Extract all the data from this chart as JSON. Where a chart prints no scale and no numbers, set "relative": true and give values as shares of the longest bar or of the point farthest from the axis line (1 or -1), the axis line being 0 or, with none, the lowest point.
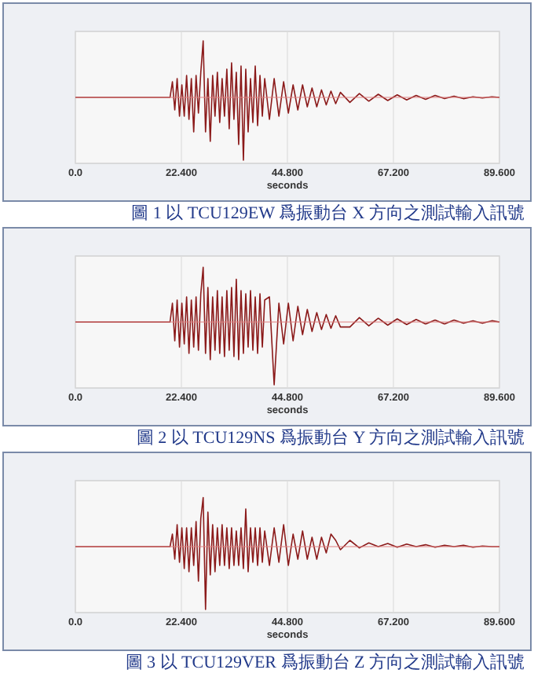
{
  "chart_data": [
    {
      "type": "line",
      "xlabel": "seconds",
      "relative": true,
      "grid": "x",
      "color": "#8b1a1a",
      "line_style": "solid",
      "marker": "none",
      "xlim": [
        0,
        89.6
      ],
      "xticks": [
        {
          "value": 0,
          "label": "0.0"
        },
        {
          "value": 22.4,
          "label": "22.400"
        },
        {
          "value": 44.8,
          "label": "44.800"
        },
        {
          "value": 67.2,
          "label": "67.200"
        },
        {
          "value": 89.6,
          "label": "89.600"
        }
      ],
      "ref_lines": [
        {
          "axis": "y",
          "value": 0,
          "color": "#e08080"
        }
      ],
      "annotations": [
        "圖 1 以 TCU129EW 爲振動台 X 方向之測試輸入訊號"
      ],
      "x": [
        0,
        20,
        20.5,
        21,
        21.5,
        22,
        22.5,
        23,
        23.5,
        24,
        24.5,
        25,
        25.5,
        26,
        26.5,
        27,
        27.5,
        28,
        28.5,
        29,
        29.5,
        30,
        30.5,
        31,
        31.5,
        32,
        32.5,
        33,
        33.5,
        34,
        34.5,
        35,
        35.5,
        36,
        36.5,
        37,
        37.5,
        38,
        38.5,
        39,
        39.5,
        40,
        41,
        42,
        43,
        44,
        45,
        46,
        47,
        48,
        49,
        50,
        51,
        52,
        53,
        54,
        55,
        56,
        58,
        60,
        62,
        64,
        66,
        68,
        70,
        72,
        74,
        76,
        78,
        80,
        82,
        84,
        86,
        88,
        89.6
      ],
      "values": [
        0,
        0,
        0.25,
        -0.2,
        0.3,
        -0.3,
        0.2,
        -0.3,
        0.35,
        -0.35,
        0.3,
        -0.55,
        0.35,
        -0.25,
        0.4,
        0.9,
        -0.55,
        0.3,
        -0.7,
        0.35,
        -0.3,
        0.4,
        -0.4,
        0.3,
        -0.3,
        0.45,
        -0.5,
        0.55,
        -0.35,
        0.4,
        -0.75,
        0.5,
        -1,
        0.45,
        -0.55,
        0.3,
        -0.4,
        0.5,
        -0.45,
        0.35,
        -0.3,
        0.3,
        -0.35,
        0.3,
        -0.3,
        0.25,
        -0.25,
        0.2,
        -0.2,
        0.2,
        -0.15,
        0.15,
        -0.15,
        0.12,
        -0.12,
        0.1,
        -0.1,
        0.08,
        -0.08,
        0.06,
        -0.06,
        0.05,
        -0.05,
        0.04,
        -0.04,
        0.03,
        -0.03,
        0.03,
        -0.02,
        0.02,
        -0.02,
        0.01,
        -0.01,
        0.01,
        0
      ]
    },
    {
      "type": "line",
      "xlabel": "seconds",
      "relative": true,
      "grid": "x",
      "color": "#8b1a1a",
      "line_style": "solid",
      "marker": "none",
      "xlim": [
        0,
        89.6
      ],
      "xticks": [
        {
          "value": 0,
          "label": "0.0"
        },
        {
          "value": 22.4,
          "label": "22.400"
        },
        {
          "value": 44.8,
          "label": "44.800"
        },
        {
          "value": 67.2,
          "label": "67.200"
        },
        {
          "value": 89.6,
          "label": "89.600"
        }
      ],
      "ref_lines": [
        {
          "axis": "y",
          "value": 0,
          "color": "#e08080"
        }
      ],
      "annotations": [
        "圖 2 以 TCU129NS 爲振動台 Y 方向之測試輸入訊號"
      ],
      "x": [
        0,
        20,
        20.5,
        21,
        21.5,
        22,
        22.5,
        23,
        23.5,
        24,
        24.5,
        25,
        25.5,
        26,
        26.5,
        27,
        27.5,
        28,
        28.5,
        29,
        29.5,
        30,
        30.5,
        31,
        31.5,
        32,
        32.5,
        33,
        33.5,
        34,
        34.5,
        35,
        35.5,
        36,
        36.5,
        37,
        37.5,
        38,
        38.5,
        39,
        39.5,
        40,
        41,
        42,
        43,
        44,
        45,
        46,
        47,
        48,
        49,
        50,
        51,
        52,
        53,
        54,
        55,
        56,
        58,
        60,
        62,
        64,
        66,
        68,
        70,
        72,
        74,
        76,
        78,
        80,
        82,
        84,
        86,
        88,
        89.6
      ],
      "values": [
        0,
        0,
        0.3,
        -0.3,
        0.35,
        -0.4,
        0.3,
        -0.35,
        0.4,
        -0.5,
        0.35,
        -0.4,
        0.4,
        -0.45,
        0.45,
        0.87,
        -0.5,
        0.55,
        -0.6,
        0.4,
        -0.45,
        0.5,
        -0.5,
        0.4,
        -0.55,
        0.5,
        -0.45,
        0.55,
        -0.55,
        0.68,
        -0.6,
        0.5,
        -0.5,
        0.45,
        -0.4,
        0.5,
        -0.45,
        0.4,
        -0.5,
        0.45,
        -0.4,
        0.35,
        0.4,
        -1,
        0.3,
        -0.35,
        0.3,
        -0.3,
        0.25,
        -0.2,
        0.2,
        -0.15,
        0.15,
        -0.12,
        0.12,
        -0.1,
        0.1,
        -0.08,
        -0.08,
        0.07,
        -0.06,
        0.06,
        -0.05,
        0.05,
        -0.04,
        0.04,
        -0.03,
        0.03,
        -0.03,
        0.03,
        -0.02,
        0.02,
        -0.02,
        0.02,
        0
      ]
    },
    {
      "type": "line",
      "xlabel": "seconds",
      "relative": true,
      "grid": "x",
      "color": "#8b1a1a",
      "line_style": "solid",
      "marker": "none",
      "xlim": [
        0,
        89.6
      ],
      "xticks": [
        {
          "value": 0,
          "label": "0.0"
        },
        {
          "value": 22.4,
          "label": "22.400"
        },
        {
          "value": 44.8,
          "label": "44.800"
        },
        {
          "value": 67.2,
          "label": "67.200"
        },
        {
          "value": 89.6,
          "label": "89.600"
        }
      ],
      "ref_lines": [
        {
          "axis": "y",
          "value": 0,
          "color": "#e08080"
        }
      ],
      "annotations": [
        "圖 3 以 TCU129VER 爲振動台 Z 方向之測試輸入訊號"
      ],
      "x": [
        0,
        20,
        20.5,
        21,
        21.5,
        22,
        22.5,
        23,
        23.5,
        24,
        24.5,
        25,
        25.5,
        26,
        26.5,
        27,
        27.5,
        28,
        28.5,
        29,
        29.5,
        30,
        30.5,
        31,
        31.5,
        32,
        32.5,
        33,
        33.5,
        34,
        34.5,
        35,
        35.5,
        36,
        36.5,
        37,
        37.5,
        38,
        38.5,
        39,
        39.5,
        40,
        41,
        42,
        43,
        44,
        45,
        46,
        47,
        48,
        49,
        50,
        51,
        52,
        53,
        54,
        55,
        56,
        58,
        60,
        62,
        64,
        66,
        68,
        70,
        72,
        74,
        76,
        78,
        80,
        82,
        84,
        86,
        88,
        89.6
      ],
      "values": [
        0,
        0,
        0.2,
        -0.2,
        0.35,
        -0.25,
        0.3,
        -0.35,
        0.3,
        -0.4,
        0.3,
        -0.3,
        0.4,
        -0.55,
        0.45,
        0.78,
        -1,
        0.55,
        -0.45,
        0.35,
        -0.4,
        0.3,
        -0.3,
        0.35,
        -0.3,
        0.3,
        -0.35,
        0.3,
        -0.3,
        0.25,
        -0.3,
        0.3,
        -0.35,
        0.6,
        -0.4,
        0.3,
        -0.25,
        0.3,
        -0.3,
        0.3,
        -0.25,
        0.25,
        -0.3,
        0.3,
        -0.25,
        0.35,
        -0.3,
        0.2,
        -0.2,
        0.25,
        -0.2,
        0.15,
        -0.2,
        0.15,
        -0.1,
        0.2,
        0.1,
        -0.05,
        0.1,
        -0.02,
        0.06,
        0,
        0.05,
        -0.01,
        0.04,
        0,
        0.03,
        -0.01,
        0.02,
        0,
        0.02,
        -0.01,
        0.01,
        0,
        0
      ]
    }
  ]
}
